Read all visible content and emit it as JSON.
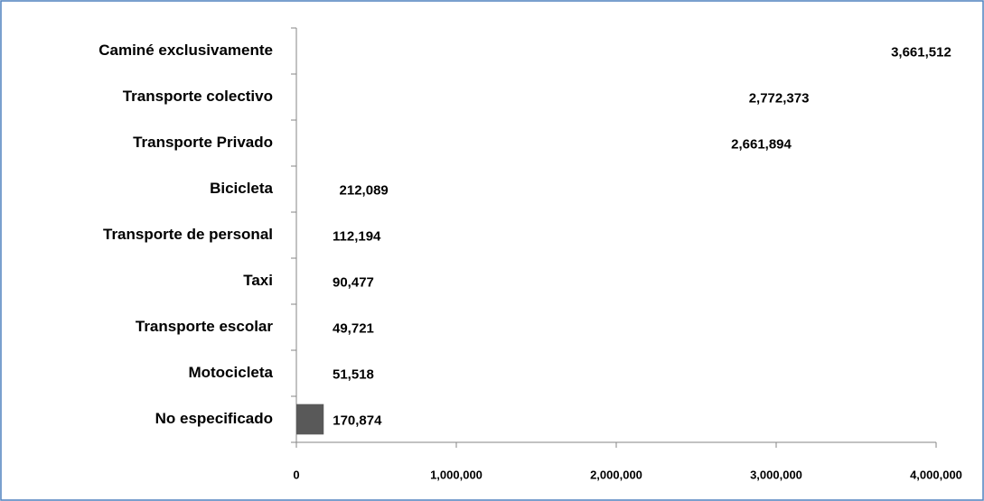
{
  "chart_data": {
    "type": "barh",
    "categories": [
      "Caminé exclusivamente",
      "Transporte colectivo",
      "Transporte Privado",
      "Bicicleta",
      "Transporte de personal",
      "Taxi",
      "Transporte escolar",
      "Motocicleta",
      "No especificado"
    ],
    "values": [
      3661512,
      2772373,
      2661894,
      212089,
      112194,
      90477,
      49721,
      51518,
      170874
    ],
    "value_labels": [
      "3,661,512",
      "2,772,373",
      "2,661,894",
      "212,089",
      "112,194",
      "90,477",
      "49,721",
      "51,518",
      "170,874"
    ],
    "colors": [
      "none",
      "none",
      "none",
      "none",
      "none",
      "none",
      "none",
      "none",
      "#595959"
    ],
    "xlim": [
      0,
      4000000
    ],
    "xticks": [
      0,
      {
        "value": 1000000,
        "label": "1,000,000"
      },
      {
        "value": 2000000,
        "label": "2,000,000"
      },
      {
        "value": 3000000,
        "label": "3,000,000"
      },
      {
        "value": 4000000,
        "label": "4,000,000"
      }
    ]
  }
}
